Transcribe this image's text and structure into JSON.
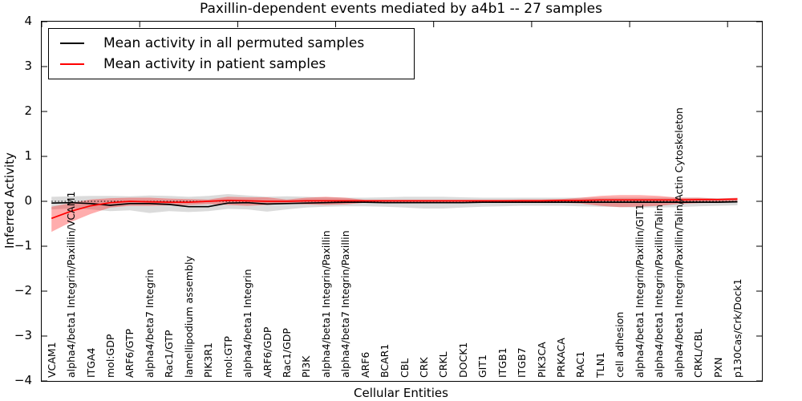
{
  "title": "Paxillin-dependent events mediated by a4b1 -- 27 samples",
  "legend": {
    "permuted_label": "Mean activity in all permuted samples",
    "patient_label": "Mean activity in patient samples"
  },
  "axes": {
    "ylabel": "Inferred Activity",
    "xlabel": "Cellular Entities",
    "yticks": [
      4,
      3,
      2,
      1,
      0,
      -1,
      -2,
      -3,
      -4
    ],
    "top_xticks": [
      0,
      5,
      10,
      15,
      20,
      25,
      30,
      35
    ]
  },
  "colors": {
    "permuted_line": "#000000",
    "patient_line": "#ff0000",
    "permuted_band": "rgba(0,0,0,0.14)",
    "patient_band": "rgba(255,0,0,0.32)",
    "background": "#ffffff"
  },
  "chart_data": {
    "type": "line",
    "title": "Paxillin-dependent events mediated by a4b1 -- 27 samples",
    "xlabel": "Cellular Entities",
    "ylabel": "Inferred Activity",
    "ylim": [
      -4,
      4
    ],
    "grid": false,
    "legend_position": "upper left",
    "categories": [
      "VCAM1",
      "alpha4/beta1 Integrin/Paxillin/VCAM1",
      "ITGA4",
      "mol:GDP",
      "ARF6/GTP",
      "alpha4/beta7 Integrin",
      "Rac1/GTP",
      "lamellipodium assembly",
      "PIK3R1",
      "mol:GTP",
      "alpha4/beta1 Integrin",
      "ARF6/GDP",
      "Rac1/GDP",
      "PI3K",
      "alpha4/beta1 Integrin/Paxillin",
      "alpha4/beta7 Integrin/Paxillin",
      "ARF6",
      "BCAR1",
      "CBL",
      "CRK",
      "CRKL",
      "DOCK1",
      "GIT1",
      "ITGB1",
      "ITGB7",
      "PIK3CA",
      "PRKACA",
      "RAC1",
      "TLN1",
      "cell adhesion",
      "alpha4/beta1 Integrin/Paxillin/GIT1",
      "alpha4/beta1 Integrin/Paxillin/Talin",
      "alpha4/beta1 Integrin/Paxillin/Talin/Actin Cytoskeleton",
      "CRKL/CBL",
      "PXN",
      "p130Cas/Crk/Dock1"
    ],
    "series": [
      {
        "name": "Mean activity in all permuted samples",
        "color": "#000000",
        "values": [
          -0.04,
          -0.03,
          -0.05,
          -0.09,
          -0.05,
          -0.05,
          -0.07,
          -0.12,
          -0.12,
          -0.04,
          -0.03,
          -0.06,
          -0.05,
          -0.04,
          -0.03,
          -0.02,
          -0.02,
          -0.03,
          -0.03,
          -0.03,
          -0.03,
          -0.03,
          -0.02,
          -0.02,
          -0.02,
          -0.02,
          -0.02,
          -0.02,
          -0.02,
          -0.02,
          -0.02,
          -0.02,
          -0.02,
          -0.02,
          -0.02,
          -0.01
        ]
      },
      {
        "name": "Mean activity in patient samples",
        "color": "#ff0000",
        "values": [
          -0.38,
          -0.22,
          -0.1,
          -0.03,
          0.0,
          -0.01,
          -0.02,
          -0.02,
          0.0,
          0.02,
          0.01,
          0.0,
          0.0,
          0.01,
          0.01,
          0.01,
          0.01,
          0.01,
          0.01,
          0.01,
          0.01,
          0.01,
          0.01,
          0.01,
          0.01,
          0.01,
          0.02,
          0.02,
          0.03,
          0.03,
          0.03,
          0.03,
          0.03,
          0.04,
          0.04,
          0.05
        ]
      }
    ],
    "bands": [
      {
        "name": "permuted-range",
        "color": "rgba(0,0,0,0.14)",
        "upper": [
          0.1,
          0.11,
          0.12,
          0.12,
          0.11,
          0.13,
          0.12,
          0.1,
          0.12,
          0.16,
          0.13,
          0.1,
          0.11,
          0.1,
          0.09,
          0.08,
          0.08,
          0.09,
          0.1,
          0.1,
          0.1,
          0.09,
          0.08,
          0.08,
          0.08,
          0.08,
          0.08,
          0.08,
          0.08,
          0.08,
          0.08,
          0.08,
          0.08,
          0.08,
          0.07,
          0.07
        ],
        "lower": [
          -0.18,
          -0.16,
          -0.18,
          -0.22,
          -0.2,
          -0.26,
          -0.22,
          -0.24,
          -0.22,
          -0.17,
          -0.18,
          -0.23,
          -0.18,
          -0.14,
          -0.12,
          -0.11,
          -0.11,
          -0.12,
          -0.14,
          -0.16,
          -0.16,
          -0.14,
          -0.12,
          -0.11,
          -0.1,
          -0.1,
          -0.1,
          -0.11,
          -0.12,
          -0.13,
          -0.14,
          -0.14,
          -0.13,
          -0.11,
          -0.1,
          -0.09
        ]
      },
      {
        "name": "patient-range",
        "color": "rgba(255,0,0,0.32)",
        "upper": [
          -0.12,
          -0.04,
          0.04,
          0.07,
          0.08,
          0.08,
          0.06,
          0.05,
          0.04,
          0.1,
          0.09,
          0.09,
          0.04,
          0.08,
          0.1,
          0.08,
          0.03,
          0.03,
          0.03,
          0.03,
          0.03,
          0.03,
          0.03,
          0.03,
          0.04,
          0.04,
          0.05,
          0.08,
          0.12,
          0.14,
          0.14,
          0.12,
          0.08,
          0.08,
          0.06,
          0.08
        ],
        "lower": [
          -0.68,
          -0.46,
          -0.28,
          -0.14,
          -0.1,
          -0.1,
          -0.09,
          -0.08,
          -0.06,
          -0.08,
          -0.1,
          -0.08,
          -0.05,
          -0.07,
          -0.08,
          -0.07,
          -0.03,
          -0.02,
          -0.02,
          -0.02,
          -0.02,
          -0.02,
          -0.02,
          -0.02,
          -0.02,
          -0.02,
          -0.03,
          -0.05,
          -0.1,
          -0.13,
          -0.12,
          -0.1,
          -0.06,
          -0.04,
          -0.03,
          -0.02
        ]
      }
    ],
    "zero_line": {
      "style": "dotted",
      "color": "#000000",
      "y": 0
    }
  }
}
